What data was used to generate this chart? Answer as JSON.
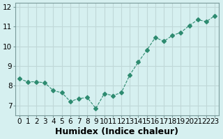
{
  "x": [
    0,
    1,
    2,
    3,
    4,
    5,
    6,
    7,
    8,
    9,
    10,
    11,
    12,
    13,
    14,
    15,
    16,
    17,
    18,
    19,
    20,
    21,
    22,
    23
  ],
  "y": [
    8.35,
    8.2,
    8.2,
    8.15,
    7.75,
    7.65,
    7.2,
    7.35,
    7.4,
    6.85,
    7.6,
    7.5,
    7.65,
    8.55,
    9.2,
    9.8,
    10.45,
    10.25,
    10.55,
    10.7,
    11.05,
    11.35,
    11.25,
    11.55
  ],
  "line_color": "#2e8b70",
  "marker": "D",
  "marker_size": 3,
  "line_width": 0.8,
  "bg_color": "#d6f0f0",
  "grid_color": "#c0d8d8",
  "xlabel": "Humidex (Indice chaleur)",
  "xlabel_fontsize": 9,
  "tick_fontsize": 7.5,
  "ylim": [
    6.5,
    12.2
  ],
  "xlim": [
    -0.5,
    23.5
  ],
  "yticks": [
    7,
    8,
    9,
    10,
    11,
    12
  ],
  "xticks": [
    0,
    1,
    2,
    3,
    4,
    5,
    6,
    7,
    8,
    9,
    10,
    11,
    12,
    13,
    14,
    15,
    16,
    17,
    18,
    19,
    20,
    21,
    22,
    23
  ]
}
